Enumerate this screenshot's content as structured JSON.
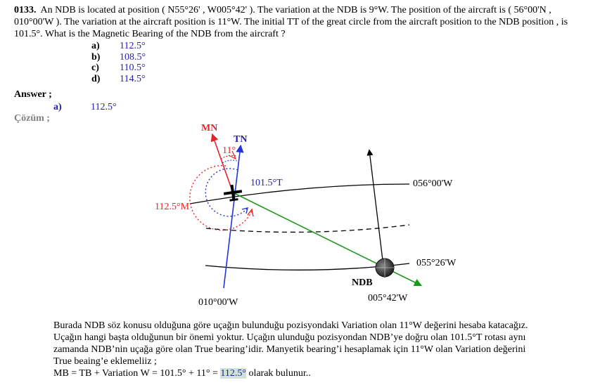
{
  "question": {
    "number": "0133.",
    "text": "An NDB is located at  position ( N55°26' , W005°42' ). The variation at the NDB is 9°W. The position of the aircraft is ( 56°00'N , 010°00'W ). The variation at the aircraft position is 11°W. The initial TT of the great circle from the aircraft position to the NDB position , is 101.5°. What is the Magnetic Bearing of the NDB  from the aircraft ?",
    "options": [
      {
        "letter": "a)",
        "value": "112.5°"
      },
      {
        "letter": "b)",
        "value": "108.5°"
      },
      {
        "letter": "c)",
        "value": "110.5°"
      },
      {
        "letter": "d)",
        "value": "114.5°"
      }
    ]
  },
  "answer": {
    "label": "Answer ;",
    "letter": "a)",
    "value": "112.5°"
  },
  "solution_label": "Çözüm ;",
  "diagram": {
    "mn": "MN",
    "tn": "TN",
    "variation_angle": "11°",
    "true_track": "101.5°T",
    "magnetic_bearing": "112.5°M",
    "lat_top": "056°00'W",
    "lat_bottom": "055°26'W",
    "lon_left": "010°00'W",
    "lon_right": "005°42'W",
    "ndb": "NDB",
    "colors": {
      "mn": "#e8222a",
      "tn": "#2233dd",
      "track": "#1a9a1a",
      "text_blue": "#1f1fa8"
    }
  },
  "explanation": {
    "line1": "Burada NDB söz konusu olduğuna göre uçağın bulunduğu pozisyondaki Variation olan 11°W değerini hesaba katacağız.",
    "line2": "Uçağın hangi başta olduğunun bir önemi yoktur. Uçağın ulunduğu pozisyondan NDB’ye doğru olan 101.5°T rotası aynı",
    "line3": "zamanda NDB’nin uçağa göre olan True bearing’idir. Manyetik bearing’i hesaplamak için 11°W  olan Variation değerini",
    "line4": "True beaing’e eklemeliiz ;",
    "formula_prefix": "MB = TB + Variation W = 101.5° + 11° = ",
    "formula_result": "112.5°",
    "formula_suffix": " olarak bulunur.."
  }
}
